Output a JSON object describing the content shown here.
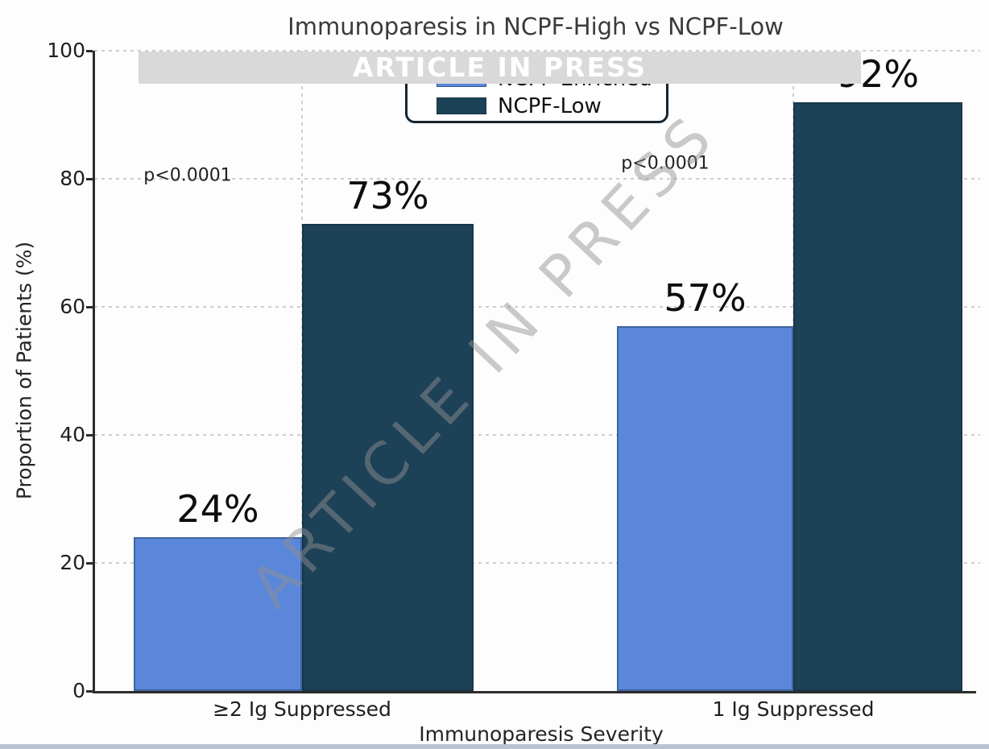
{
  "title": "Immunoparesis in NCPF-High vs NCPF-Low",
  "watermark": {
    "banner_text": "ARTICLE IN PRESS",
    "diagonal_text": "ARTICLE IN PRESS"
  },
  "chart_data": {
    "type": "bar",
    "title": "Immunoparesis in NCPF-High vs NCPF-Low",
    "xlabel": "Immunoparesis Severity",
    "ylabel": "Proportion of Patients (%)",
    "categories": [
      "≥2 Ig Suppressed",
      "1 Ig Suppressed"
    ],
    "series": [
      {
        "name": "NCPF-Enriched",
        "color": "#5b87da",
        "values": [
          24,
          57
        ],
        "value_labels": [
          "24%",
          "57%"
        ]
      },
      {
        "name": "NCPF-Low",
        "color": "#1d4157",
        "values": [
          73,
          92
        ],
        "value_labels": [
          "73%",
          "92%"
        ]
      }
    ],
    "annotations": [
      "p<0.0001",
      "p<0.0001"
    ],
    "ylim": [
      0,
      100
    ],
    "yticks": [
      "0",
      "20",
      "40",
      "60",
      "80",
      "100"
    ],
    "grid": "dashed horizontal gridlines at 20/40/60/80/100 and dashed vertical lines at category centers",
    "legend_position": "upper center"
  }
}
